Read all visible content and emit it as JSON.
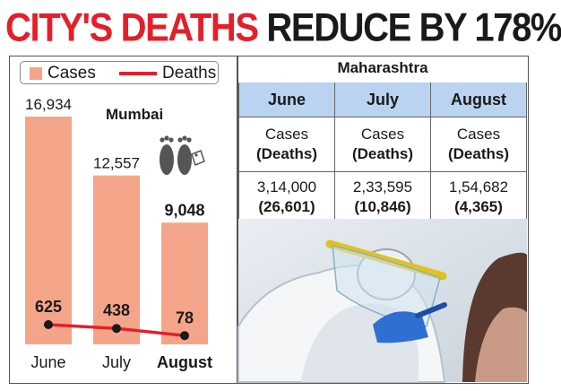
{
  "headline": {
    "part1": "CITY'S DEATHS",
    "part2": "REDUCE BY 178%"
  },
  "legend": {
    "cases": "Cases",
    "deaths": "Deaths"
  },
  "region_label": "Mumbai",
  "colors": {
    "bar": "#f4a589",
    "deaths_line": "#e3202a",
    "headline_red": "#e3202a",
    "table_header": "#b9d3f1"
  },
  "chart_data": {
    "type": "bar",
    "categories": [
      "June",
      "July",
      "August"
    ],
    "series": [
      {
        "name": "Cases",
        "values": [
          16934,
          12557,
          9048
        ],
        "labels": [
          "16,934",
          "12,557",
          "9,048"
        ]
      },
      {
        "name": "Deaths",
        "values": [
          625,
          438,
          78
        ],
        "labels": [
          "625",
          "438",
          "78"
        ]
      }
    ]
  },
  "maharashtra": {
    "title": "Maharashtra",
    "headers": [
      "June",
      "July",
      "August"
    ],
    "row_label_top": "Cases",
    "row_label_bottom": "(Deaths)",
    "cases": [
      "3,14,000",
      "2,33,595",
      "1,54,682"
    ],
    "deaths": [
      "(26,601)",
      "(10,846)",
      "(4,365)"
    ]
  }
}
